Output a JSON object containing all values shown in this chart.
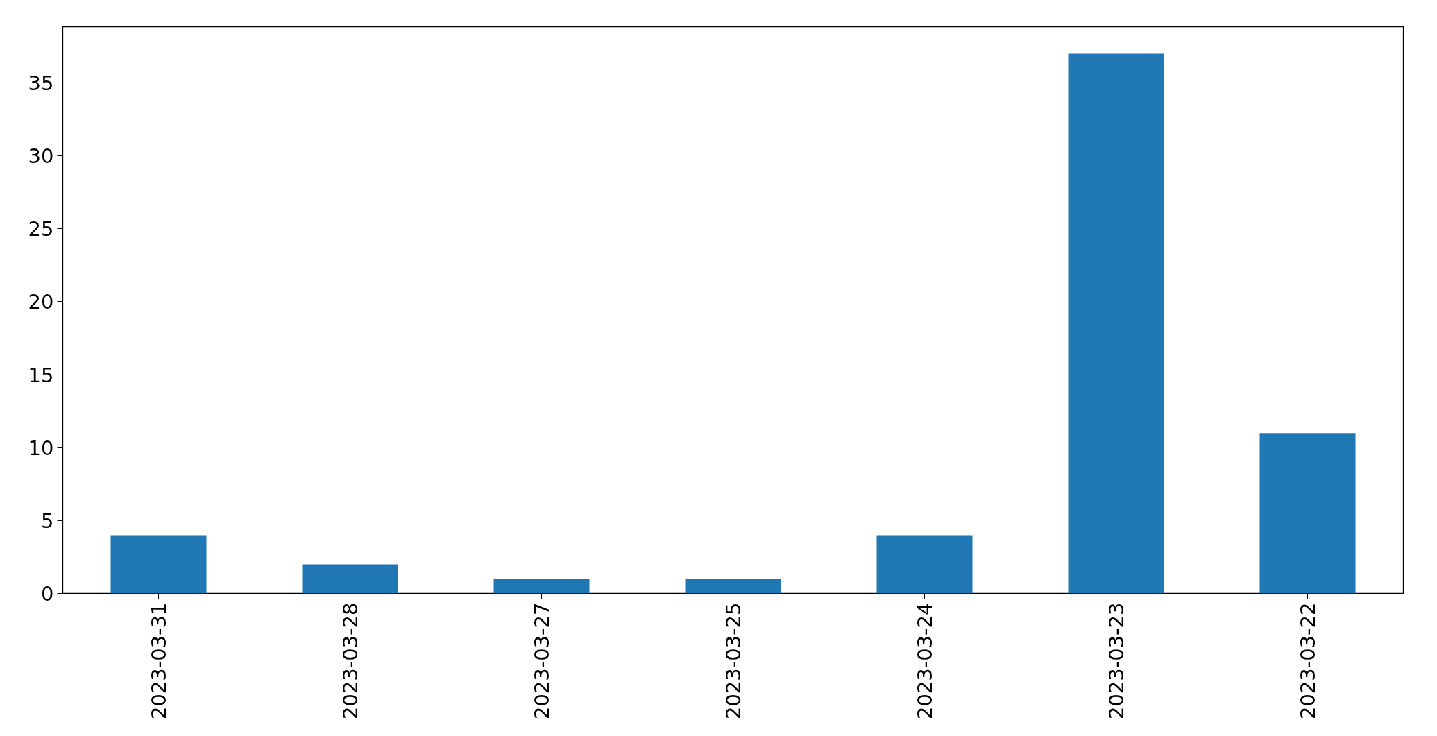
{
  "chart_data": {
    "type": "bar",
    "categories": [
      "2023-03-31",
      "2023-03-28",
      "2023-03-27",
      "2023-03-25",
      "2023-03-24",
      "2023-03-23",
      "2023-03-22"
    ],
    "values": [
      4,
      2,
      1,
      1,
      4,
      37,
      11
    ],
    "color": "#1f77b4",
    "ylim": [
      0,
      38.85
    ],
    "yticks": [
      0,
      5,
      10,
      15,
      20,
      25,
      30,
      35
    ],
    "grid": false
  }
}
